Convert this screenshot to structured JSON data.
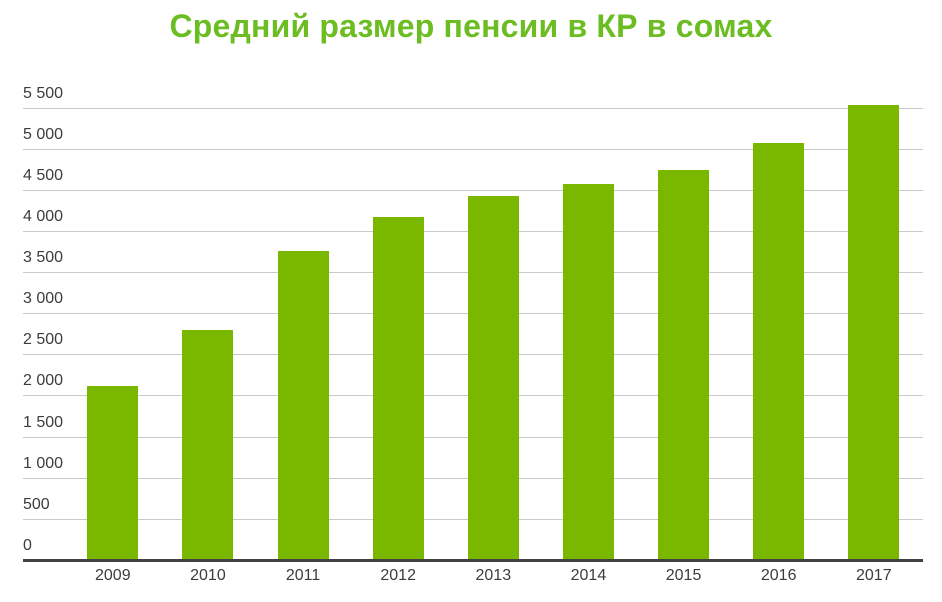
{
  "chart_data": {
    "type": "bar",
    "title": "Средний размер пенсии в КР в сомах",
    "categories": [
      "2009",
      "2010",
      "2011",
      "2012",
      "2013",
      "2014",
      "2015",
      "2016",
      "2017"
    ],
    "values": [
      2110,
      2790,
      3760,
      4170,
      4420,
      4565,
      4745,
      5070,
      5530
    ],
    "xlabel": "",
    "ylabel": "",
    "ylim": [
      0,
      5500
    ],
    "y_tick_step": 500,
    "y_tick_labels": [
      "0",
      "500",
      "1 000",
      "1 500",
      "2 000",
      "2 500",
      "3 000",
      "3 500",
      "4 000",
      "4 500",
      "5 000",
      "5 500"
    ],
    "grid": true,
    "legend": "none",
    "colors": {
      "bar": "#7ab800",
      "title": "#6cbd22",
      "grid": "#c9c9c9",
      "axis_line": "#404040",
      "tick_label": "#3c3c3c"
    }
  }
}
